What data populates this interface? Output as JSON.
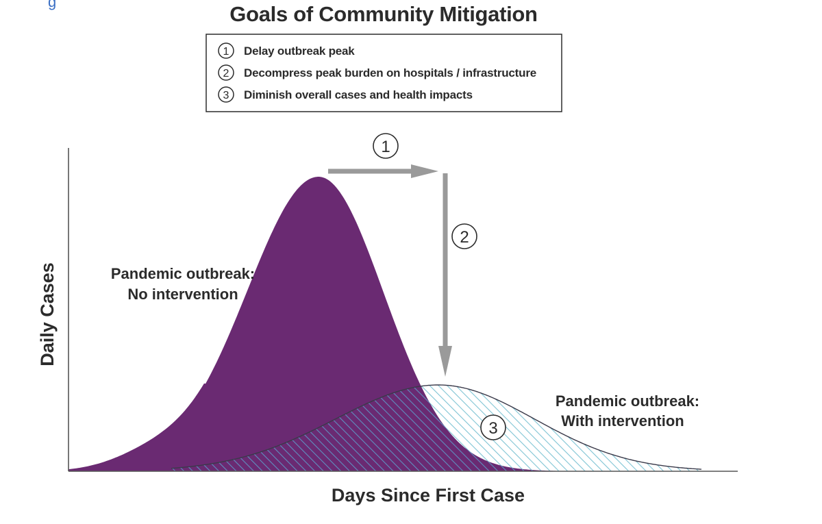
{
  "title": "Goals of Community Mitigation",
  "corner_fragment": "g",
  "legend": {
    "items": [
      {
        "number": "1",
        "text": "Delay outbreak peak"
      },
      {
        "number": "2",
        "text": "Decompress peak burden on hospitals / infrastructure"
      },
      {
        "number": "3",
        "text": "Diminish overall cases and health impacts"
      }
    ]
  },
  "axes": {
    "ylabel": "Daily Cases",
    "xlabel": "Days Since First Case"
  },
  "curves": {
    "no_intervention": {
      "label_line1": "Pandemic outbreak:",
      "label_line2": "No intervention",
      "color": "#6a2a72"
    },
    "with_intervention": {
      "label_line1": "Pandemic outbreak:",
      "label_line2": "With intervention",
      "hatch_color": "#7fc4d4",
      "outline_color": "#3a3a4a"
    }
  },
  "markers": {
    "delay": "1",
    "decompress": "2",
    "diminish": "3",
    "arrow_color": "#9a9a9a"
  }
}
